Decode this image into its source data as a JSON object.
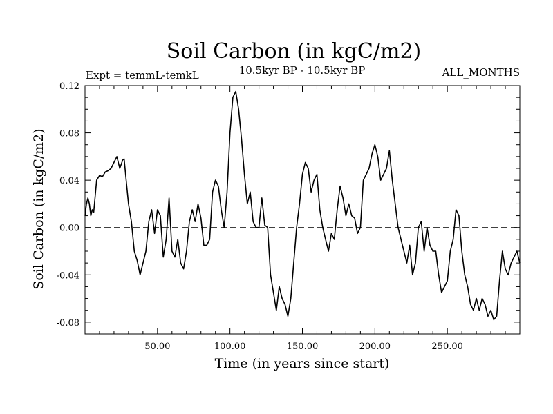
{
  "chart_data": {
    "type": "line",
    "title": "Soil Carbon (in kgC/m2)",
    "subtitle_left": "Expt = temmL-temkL",
    "subtitle_center": "10.5kyr BP - 10.5kyr BP",
    "subtitle_right": "ALL_MONTHS",
    "xlabel": "Time (in years since start)",
    "ylabel": "Soil Carbon (in kgC/m2)",
    "xlim": [
      0,
      300
    ],
    "ylim": [
      -0.09,
      0.12
    ],
    "xticks": [
      50,
      100,
      150,
      200,
      250
    ],
    "xtick_labels": [
      "50.00",
      "100.00",
      "150.00",
      "200.00",
      "250.00"
    ],
    "yticks": [
      -0.08,
      -0.04,
      0.0,
      0.04,
      0.08,
      0.12
    ],
    "ytick_labels": [
      "-0.08",
      "-0.04",
      "0.00",
      "0.04",
      "0.08",
      "0.12"
    ],
    "reference_line": {
      "y": 0.0,
      "style": "dashed"
    },
    "series": [
      {
        "name": "Soil Carbon",
        "color": "#000000",
        "x": [
          0,
          1,
          2,
          3,
          4,
          5,
          6,
          8,
          10,
          12,
          14,
          16,
          18,
          20,
          22,
          24,
          26,
          27,
          28,
          30,
          32,
          34,
          36,
          38,
          40,
          42,
          44,
          46,
          48,
          50,
          52,
          54,
          56,
          58,
          60,
          62,
          64,
          66,
          68,
          70,
          72,
          74,
          76,
          78,
          80,
          82,
          84,
          86,
          88,
          90,
          92,
          94,
          96,
          98,
          100,
          102,
          104,
          106,
          108,
          110,
          112,
          114,
          116,
          118,
          120,
          122,
          124,
          126,
          128,
          130,
          132,
          134,
          136,
          138,
          140,
          142,
          144,
          146,
          148,
          150,
          152,
          154,
          156,
          158,
          160,
          162,
          164,
          166,
          168,
          170,
          172,
          174,
          176,
          178,
          180,
          182,
          184,
          186,
          188,
          190,
          192,
          194,
          196,
          198,
          200,
          202,
          204,
          206,
          208,
          210,
          212,
          214,
          216,
          218,
          220,
          222,
          224,
          226,
          228,
          230,
          232,
          234,
          236,
          238,
          240,
          242,
          244,
          246,
          248,
          250,
          252,
          254,
          256,
          258,
          260,
          262,
          264,
          266,
          268,
          270,
          272,
          274,
          276,
          278,
          280,
          282,
          284,
          286,
          288,
          290,
          292,
          294,
          296,
          298,
          300
        ],
        "values": [
          0.01,
          0.02,
          0.025,
          0.02,
          0.01,
          0.015,
          0.013,
          0.04,
          0.044,
          0.043,
          0.047,
          0.048,
          0.05,
          0.055,
          0.06,
          0.05,
          0.057,
          0.058,
          0.045,
          0.02,
          0.005,
          -0.02,
          -0.028,
          -0.04,
          -0.03,
          -0.02,
          0.005,
          0.015,
          -0.005,
          0.015,
          0.01,
          -0.025,
          -0.01,
          0.025,
          -0.02,
          -0.025,
          -0.01,
          -0.03,
          -0.035,
          -0.02,
          0.005,
          0.015,
          0.005,
          0.02,
          0.008,
          -0.015,
          -0.015,
          -0.01,
          0.03,
          0.04,
          0.035,
          0.015,
          0.0,
          0.03,
          0.08,
          0.11,
          0.115,
          0.1,
          0.075,
          0.045,
          0.02,
          0.03,
          0.005,
          0.0,
          0.0,
          0.025,
          0.002,
          0.0,
          -0.04,
          -0.055,
          -0.07,
          -0.05,
          -0.06,
          -0.065,
          -0.075,
          -0.06,
          -0.03,
          0.0,
          0.02,
          0.045,
          0.055,
          0.05,
          0.03,
          0.04,
          0.045,
          0.015,
          0.0,
          -0.01,
          -0.02,
          -0.005,
          -0.01,
          0.015,
          0.035,
          0.025,
          0.01,
          0.02,
          0.01,
          0.008,
          -0.005,
          0.0,
          0.04,
          0.045,
          0.05,
          0.062,
          0.07,
          0.06,
          0.04,
          0.045,
          0.05,
          0.065,
          0.04,
          0.02,
          0.0,
          -0.01,
          -0.02,
          -0.03,
          -0.015,
          -0.04,
          -0.03,
          0.0,
          0.005,
          -0.02,
          0.0,
          -0.015,
          -0.02,
          -0.02,
          -0.04,
          -0.055,
          -0.05,
          -0.045,
          -0.02,
          -0.01,
          0.015,
          0.01,
          -0.02,
          -0.04,
          -0.05,
          -0.065,
          -0.07,
          -0.06,
          -0.07,
          -0.06,
          -0.065,
          -0.075,
          -0.07,
          -0.078,
          -0.075,
          -0.045,
          -0.02,
          -0.035,
          -0.04,
          -0.03,
          -0.025,
          -0.02,
          -0.03
        ]
      }
    ]
  }
}
